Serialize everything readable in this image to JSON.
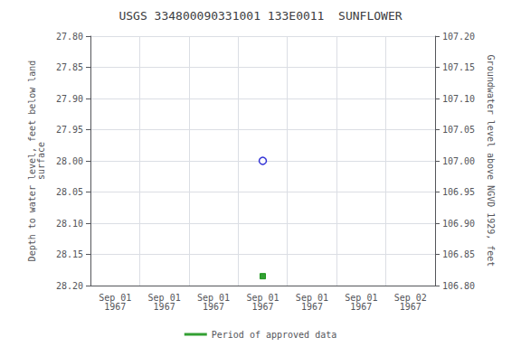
{
  "chart_data": {
    "type": "scatter",
    "title": "USGS 334800090331001 133E0011  SUNFLOWER",
    "y_label": "Depth to water level, feet below land\nsurface",
    "y2_label": "Groundwater level above NGVD 1929, feet",
    "categories": [
      "Sep 01\n1967",
      "Sep 01\n1967",
      "Sep 01\n1967",
      "Sep 01\n1967",
      "Sep 01\n1967",
      "Sep 01\n1967",
      "Sep 02\n1967"
    ],
    "series": [
      {
        "color": "#0000cc",
        "marker": "circle",
        "values": [
          null,
          null,
          null,
          28.0,
          null,
          null,
          null
        ]
      },
      {
        "name": "Period of approved data",
        "color": "#008800",
        "marker": "square",
        "values": [
          null,
          null,
          null,
          28.185,
          null,
          null,
          null
        ]
      }
    ],
    "ylim": [
      28.2,
      27.8
    ],
    "yticks": [
      {
        "value": 27.8,
        "label": "27.80"
      },
      27.85,
      {
        "value": 27.9,
        "label": "27.90"
      },
      27.95,
      {
        "value": 28.0,
        "label": "28.00"
      },
      28.05,
      {
        "value": 28.1,
        "label": "28.10"
      },
      28.15,
      {
        "value": 28.2,
        "label": "28.20"
      }
    ],
    "y2lim": [
      106.8,
      107.2
    ],
    "y2ticks": [
      {
        "value": 107.2,
        "label": "107.20"
      },
      107.15,
      {
        "value": 107.1,
        "label": "107.10"
      },
      107.05,
      {
        "value": 107.0,
        "label": "107.00"
      },
      106.95,
      {
        "value": 106.9,
        "label": "106.90"
      },
      106.85,
      {
        "value": 106.8,
        "label": "106.80"
      }
    ],
    "grid": true,
    "legend": "bottom"
  }
}
